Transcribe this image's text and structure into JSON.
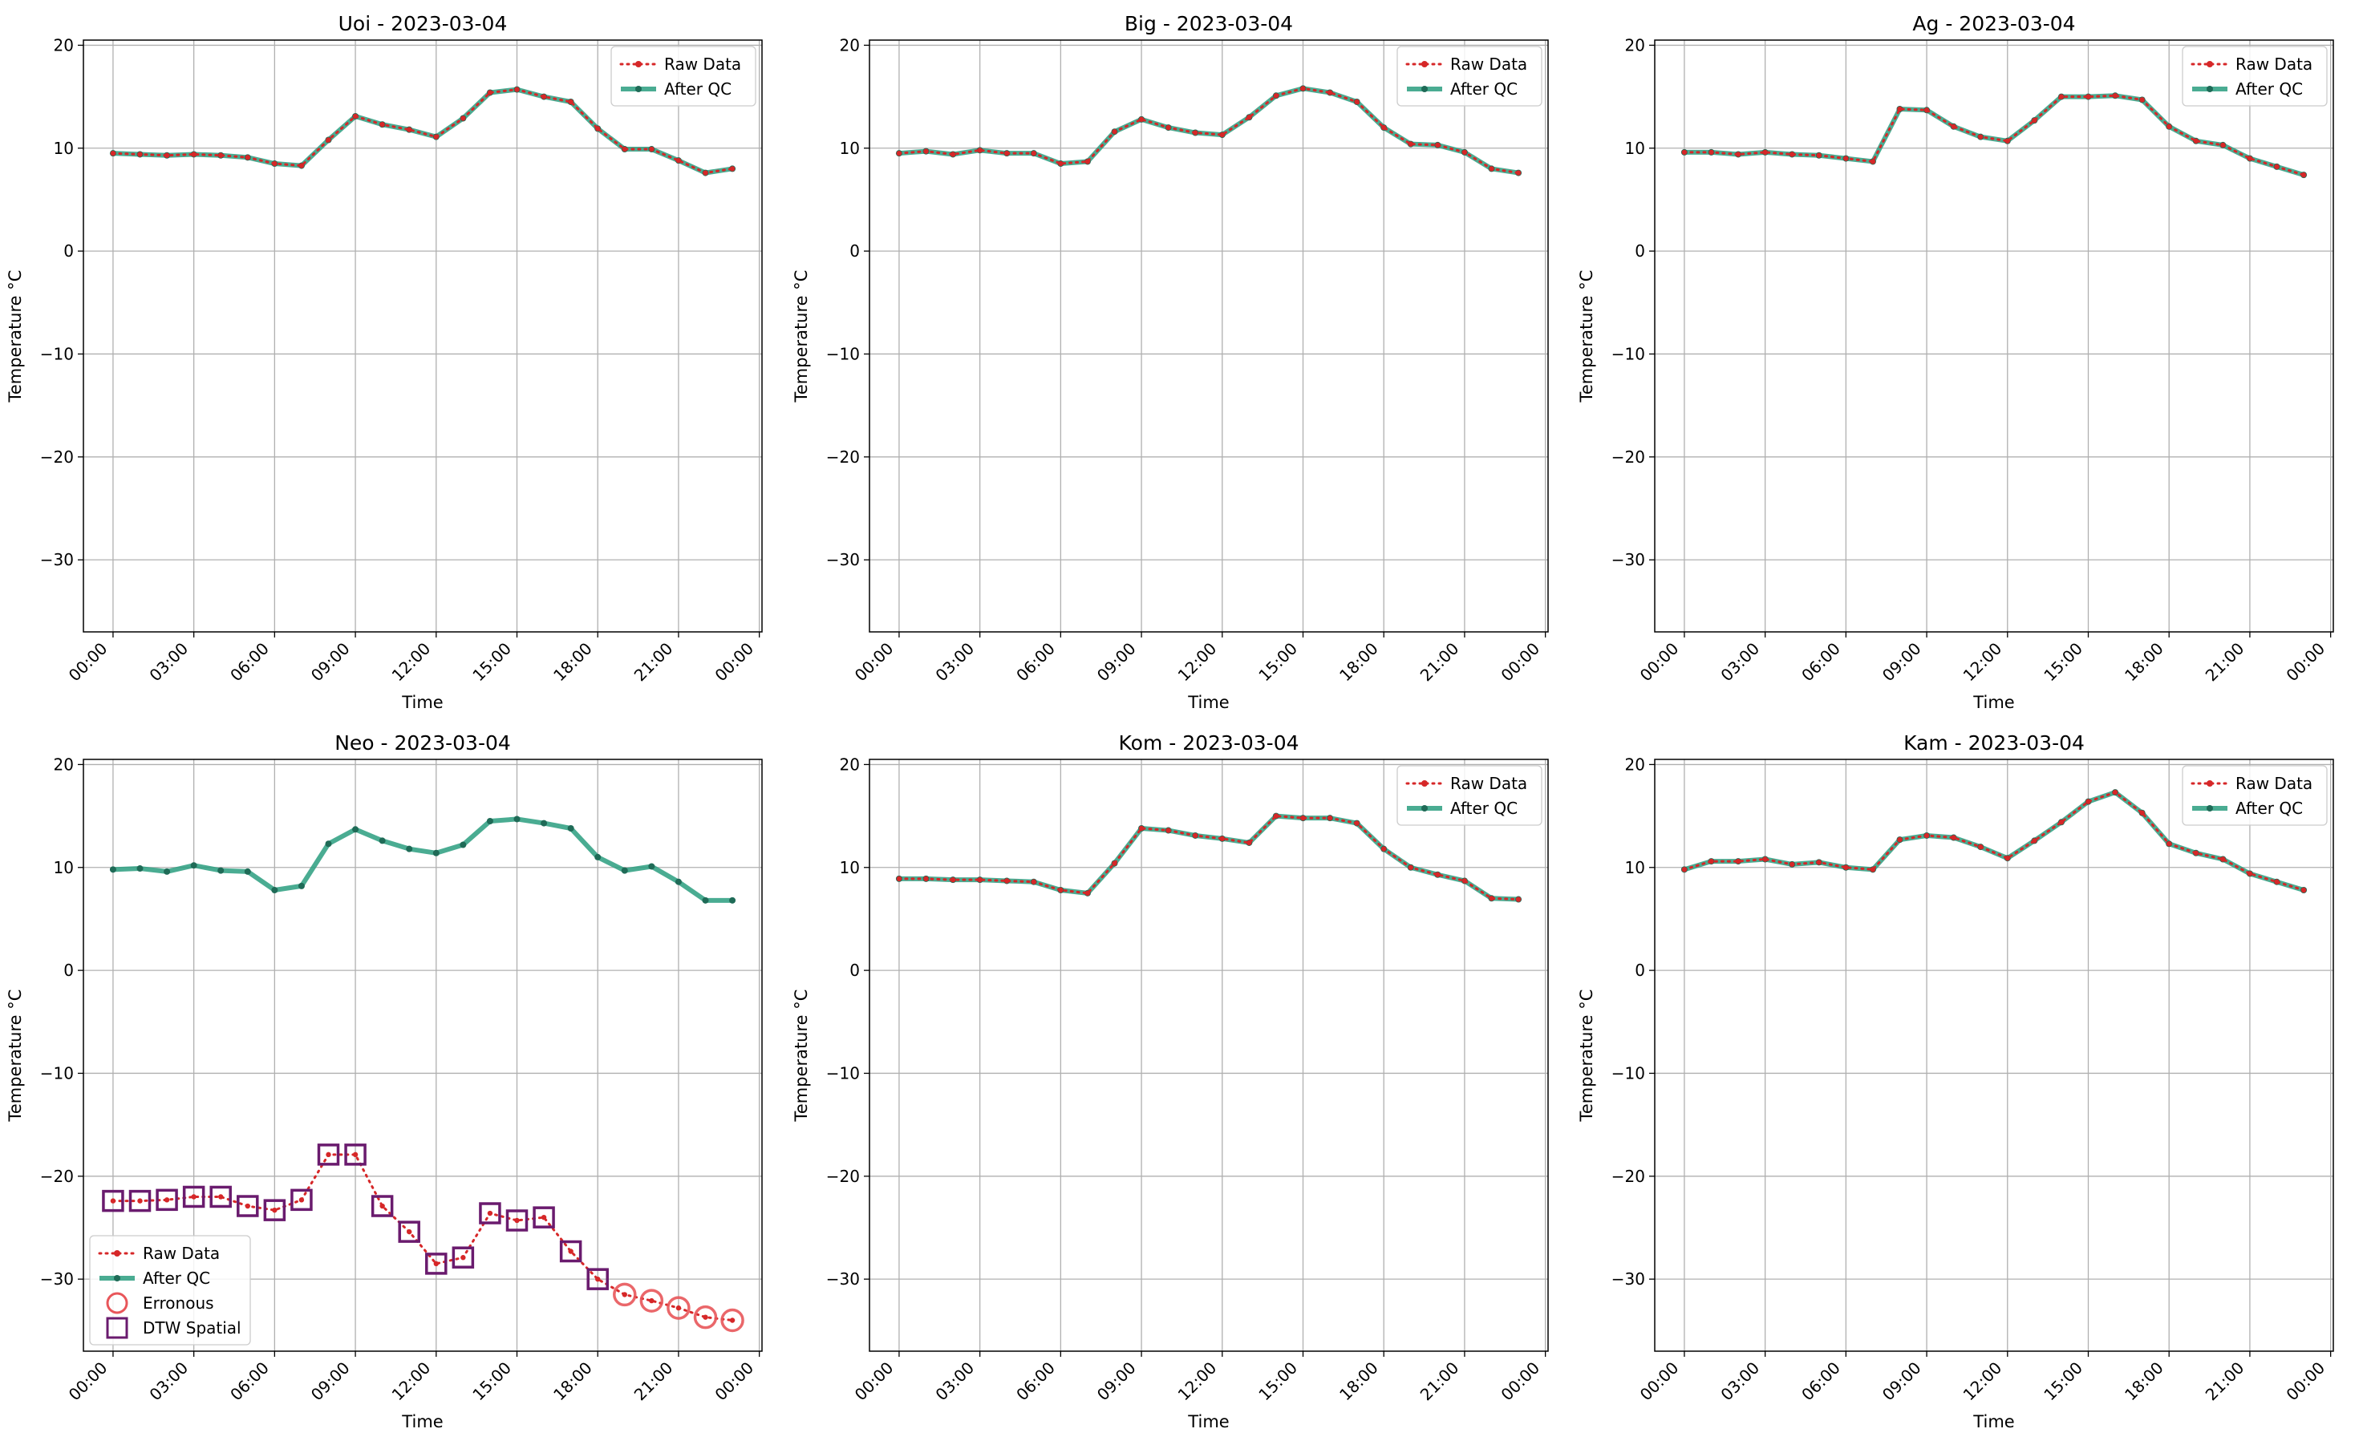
{
  "figure_date": "2023-03-04",
  "colors": {
    "raw": "#d62728",
    "qc": "#2a9d7f",
    "qc_dot": "#1f6b57",
    "erroneous": "#e8565a",
    "dtw": "#6a1b6e",
    "grid": "#b0b0b0"
  },
  "legend_labels": {
    "raw": "Raw Data",
    "qc": "After QC",
    "erroneous": "Erronous",
    "dtw": "DTW Spatial"
  },
  "chart_data": [
    {
      "type": "line",
      "title": "Uoi - 2023-03-04",
      "xlabel": "Time",
      "ylabel": "Temperature  °C",
      "xticks": [
        "00:00",
        "03:00",
        "06:00",
        "09:00",
        "12:00",
        "15:00",
        "18:00",
        "21:00",
        "00:00"
      ],
      "yticks": [
        "20",
        "10",
        "0",
        "−10",
        "−20",
        "−30"
      ],
      "xlim": [
        -1.1,
        24.1
      ],
      "ylim": [
        -37,
        20.5
      ],
      "grid": true,
      "legend_loc": "upper right",
      "x": [
        0,
        1,
        2,
        3,
        4,
        5,
        6,
        7,
        8,
        9,
        10,
        11,
        12,
        13,
        14,
        15,
        16,
        17,
        18,
        19,
        20,
        21,
        22,
        23
      ],
      "series": [
        {
          "name": "Raw Data",
          "values": [
            9.5,
            9.4,
            9.3,
            9.4,
            9.3,
            9.1,
            8.5,
            8.3,
            10.8,
            13.1,
            12.3,
            11.8,
            11.1,
            12.9,
            15.4,
            15.7,
            15.0,
            14.5,
            11.9,
            9.9,
            9.9,
            8.8,
            7.6,
            8.0
          ]
        },
        {
          "name": "After QC",
          "values": [
            9.5,
            9.4,
            9.3,
            9.4,
            9.3,
            9.1,
            8.5,
            8.3,
            10.8,
            13.1,
            12.3,
            11.8,
            11.1,
            12.9,
            15.4,
            15.7,
            15.0,
            14.5,
            11.9,
            9.9,
            9.9,
            8.8,
            7.6,
            8.0
          ]
        }
      ],
      "erroneous_idx": [],
      "dtw_idx": []
    },
    {
      "type": "line",
      "title": "Big - 2023-03-04",
      "xlabel": "Time",
      "ylabel": "Temperature  °C",
      "xticks": [
        "00:00",
        "03:00",
        "06:00",
        "09:00",
        "12:00",
        "15:00",
        "18:00",
        "21:00",
        "00:00"
      ],
      "yticks": [
        "20",
        "10",
        "0",
        "−10",
        "−20",
        "−30"
      ],
      "xlim": [
        -1.1,
        24.1
      ],
      "ylim": [
        -37,
        20.5
      ],
      "grid": true,
      "legend_loc": "upper right",
      "x": [
        0,
        1,
        2,
        3,
        4,
        5,
        6,
        7,
        8,
        9,
        10,
        11,
        12,
        13,
        14,
        15,
        16,
        17,
        18,
        19,
        20,
        21,
        22,
        23
      ],
      "series": [
        {
          "name": "Raw Data",
          "values": [
            9.5,
            9.7,
            9.4,
            9.8,
            9.5,
            9.5,
            8.5,
            8.7,
            11.6,
            12.8,
            12.0,
            11.5,
            11.3,
            13.0,
            15.1,
            15.8,
            15.4,
            14.5,
            12.0,
            10.4,
            10.3,
            9.6,
            8.0,
            7.6
          ]
        },
        {
          "name": "After QC",
          "values": [
            9.5,
            9.7,
            9.4,
            9.8,
            9.5,
            9.5,
            8.5,
            8.7,
            11.6,
            12.8,
            12.0,
            11.5,
            11.3,
            13.0,
            15.1,
            15.8,
            15.4,
            14.5,
            12.0,
            10.4,
            10.3,
            9.6,
            8.0,
            7.6
          ]
        }
      ],
      "erroneous_idx": [],
      "dtw_idx": []
    },
    {
      "type": "line",
      "title": "Ag - 2023-03-04",
      "xlabel": "Time",
      "ylabel": "Temperature  °C",
      "xticks": [
        "00:00",
        "03:00",
        "06:00",
        "09:00",
        "12:00",
        "15:00",
        "18:00",
        "21:00",
        "00:00"
      ],
      "yticks": [
        "20",
        "10",
        "0",
        "−10",
        "−20",
        "−30"
      ],
      "xlim": [
        -1.1,
        24.1
      ],
      "ylim": [
        -37,
        20.5
      ],
      "grid": true,
      "legend_loc": "upper right",
      "x": [
        0,
        1,
        2,
        3,
        4,
        5,
        6,
        7,
        8,
        9,
        10,
        11,
        12,
        13,
        14,
        15,
        16,
        17,
        18,
        19,
        20,
        21,
        22,
        23
      ],
      "series": [
        {
          "name": "Raw Data",
          "values": [
            9.6,
            9.6,
            9.4,
            9.6,
            9.4,
            9.3,
            9.0,
            8.7,
            13.8,
            13.7,
            12.1,
            11.1,
            10.7,
            12.7,
            15.0,
            15.0,
            15.1,
            14.7,
            12.1,
            10.7,
            10.3,
            9.0,
            8.2,
            7.4
          ]
        },
        {
          "name": "After QC",
          "values": [
            9.6,
            9.6,
            9.4,
            9.6,
            9.4,
            9.3,
            9.0,
            8.7,
            13.8,
            13.7,
            12.1,
            11.1,
            10.7,
            12.7,
            15.0,
            15.0,
            15.1,
            14.7,
            12.1,
            10.7,
            10.3,
            9.0,
            8.2,
            7.4
          ]
        }
      ],
      "erroneous_idx": [],
      "dtw_idx": []
    },
    {
      "type": "line",
      "title": "Neo - 2023-03-04",
      "xlabel": "Time",
      "ylabel": "Temperature  °C",
      "xticks": [
        "00:00",
        "03:00",
        "06:00",
        "09:00",
        "12:00",
        "15:00",
        "18:00",
        "21:00",
        "00:00"
      ],
      "yticks": [
        "20",
        "10",
        "0",
        "−10",
        "−20",
        "−30"
      ],
      "xlim": [
        -1.1,
        24.1
      ],
      "ylim": [
        -37,
        20.5
      ],
      "grid": true,
      "legend_loc": "lower left",
      "x": [
        0,
        1,
        2,
        3,
        4,
        5,
        6,
        7,
        8,
        9,
        10,
        11,
        12,
        13,
        14,
        15,
        16,
        17,
        18,
        19,
        20,
        21,
        22,
        23
      ],
      "series": [
        {
          "name": "Raw Data",
          "values": [
            -22.4,
            -22.4,
            -22.3,
            -22.0,
            -22.0,
            -22.9,
            -23.3,
            -22.3,
            -17.9,
            -17.9,
            -22.9,
            -25.4,
            -28.5,
            -27.9,
            -23.6,
            -24.3,
            -24.0,
            -27.3,
            -30.0,
            -31.5,
            -32.1,
            -32.8,
            -33.7,
            -34.0
          ]
        },
        {
          "name": "After QC",
          "values": [
            9.8,
            9.9,
            9.6,
            10.2,
            9.7,
            9.6,
            7.8,
            8.2,
            12.3,
            13.7,
            12.6,
            11.8,
            11.4,
            12.2,
            14.5,
            14.7,
            14.3,
            13.8,
            11.0,
            9.7,
            10.1,
            8.6,
            6.8,
            6.8
          ]
        }
      ],
      "erroneous_idx": [
        19,
        20,
        21,
        22,
        23
      ],
      "dtw_idx": [
        0,
        1,
        2,
        3,
        4,
        5,
        6,
        7,
        8,
        9,
        10,
        11,
        12,
        13,
        14,
        15,
        16,
        17,
        18
      ]
    },
    {
      "type": "line",
      "title": "Kom - 2023-03-04",
      "xlabel": "Time",
      "ylabel": "Temperature  °C",
      "xticks": [
        "00:00",
        "03:00",
        "06:00",
        "09:00",
        "12:00",
        "15:00",
        "18:00",
        "21:00",
        "00:00"
      ],
      "yticks": [
        "20",
        "10",
        "0",
        "−10",
        "−20",
        "−30"
      ],
      "xlim": [
        -1.1,
        24.1
      ],
      "ylim": [
        -37,
        20.5
      ],
      "grid": true,
      "legend_loc": "upper right",
      "x": [
        0,
        1,
        2,
        3,
        4,
        5,
        6,
        7,
        8,
        9,
        10,
        11,
        12,
        13,
        14,
        15,
        16,
        17,
        18,
        19,
        20,
        21,
        22,
        23
      ],
      "series": [
        {
          "name": "Raw Data",
          "values": [
            8.9,
            8.9,
            8.8,
            8.8,
            8.7,
            8.6,
            7.8,
            7.5,
            10.4,
            13.8,
            13.6,
            13.1,
            12.8,
            12.4,
            15.0,
            14.8,
            14.8,
            14.3,
            11.8,
            10.0,
            9.3,
            8.7,
            7.0,
            6.9
          ]
        },
        {
          "name": "After QC",
          "values": [
            8.9,
            8.9,
            8.8,
            8.8,
            8.7,
            8.6,
            7.8,
            7.5,
            10.4,
            13.8,
            13.6,
            13.1,
            12.8,
            12.4,
            15.0,
            14.8,
            14.8,
            14.3,
            11.8,
            10.0,
            9.3,
            8.7,
            7.0,
            6.9
          ]
        }
      ],
      "erroneous_idx": [],
      "dtw_idx": []
    },
    {
      "type": "line",
      "title": "Kam - 2023-03-04",
      "xlabel": "Time",
      "ylabel": "Temperature  °C",
      "xticks": [
        "00:00",
        "03:00",
        "06:00",
        "09:00",
        "12:00",
        "15:00",
        "18:00",
        "21:00",
        "00:00"
      ],
      "yticks": [
        "20",
        "10",
        "0",
        "−10",
        "−20",
        "−30"
      ],
      "xlim": [
        -1.1,
        24.1
      ],
      "ylim": [
        -37,
        20.5
      ],
      "grid": true,
      "legend_loc": "upper right",
      "x": [
        0,
        1,
        2,
        3,
        4,
        5,
        6,
        7,
        8,
        9,
        10,
        11,
        12,
        13,
        14,
        15,
        16,
        17,
        18,
        19,
        20,
        21,
        22,
        23
      ],
      "series": [
        {
          "name": "Raw Data",
          "values": [
            9.8,
            10.6,
            10.6,
            10.8,
            10.3,
            10.5,
            10.0,
            9.8,
            12.7,
            13.1,
            12.9,
            12.0,
            10.9,
            12.6,
            14.4,
            16.4,
            17.3,
            15.3,
            12.3,
            11.4,
            10.8,
            9.4,
            8.6,
            7.8
          ]
        },
        {
          "name": "After QC",
          "values": [
            9.8,
            10.6,
            10.6,
            10.8,
            10.3,
            10.5,
            10.0,
            9.8,
            12.7,
            13.1,
            12.9,
            12.0,
            10.9,
            12.6,
            14.4,
            16.4,
            17.3,
            15.3,
            12.3,
            11.4,
            10.8,
            9.4,
            8.6,
            7.8
          ]
        }
      ],
      "erroneous_idx": [],
      "dtw_idx": []
    }
  ]
}
